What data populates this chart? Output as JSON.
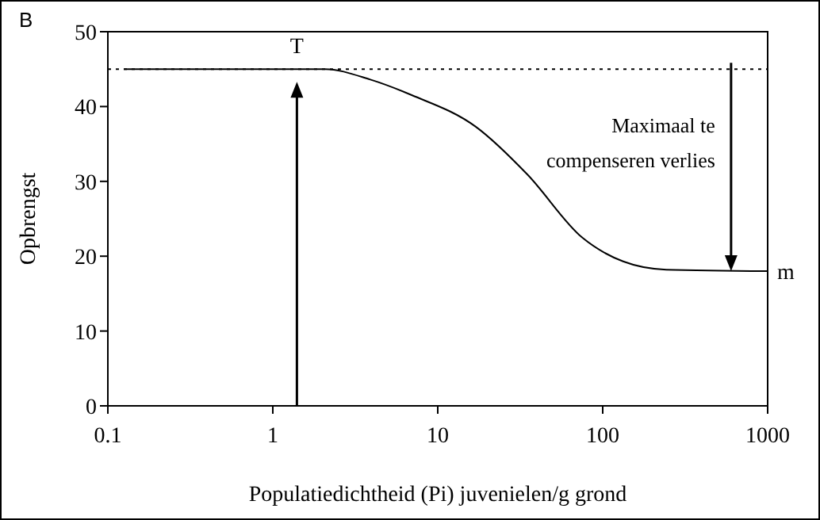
{
  "chart_data": {
    "type": "line",
    "title": "B",
    "xlabel": "Populatiedichtheid (Pi) juvenielen/g grond",
    "ylabel": "Opbrengst",
    "log": "x",
    "xlim": [
      0.1,
      1000
    ],
    "xticks": [
      0.1,
      1,
      10,
      100,
      1000
    ],
    "ylim": [
      0,
      50
    ],
    "yticks": [
      0,
      10,
      20,
      30,
      40,
      50
    ],
    "marker": "none",
    "line_style": "solid",
    "series": [
      {
        "color": "#000000",
        "x": [
          0.125,
          2.07,
          3.9,
          7,
          17,
          35,
          75,
          133,
          243,
          1000
        ],
        "values": [
          45,
          45,
          43.6,
          41.5,
          37.3,
          30.9,
          22.5,
          19.3,
          18.2,
          18
        ]
      }
    ],
    "ref_lines": [
      {
        "axis": "y",
        "value": 45,
        "line_style": "dotted",
        "color": "#000000"
      }
    ],
    "annotations": [
      {
        "text": "T",
        "x": 1.4,
        "y": 45
      },
      {
        "text": "m",
        "x": 1000,
        "y": 18
      },
      {
        "text": "Maximaal te compenseren verlies",
        "x": 600,
        "y": 45
      }
    ]
  }
}
